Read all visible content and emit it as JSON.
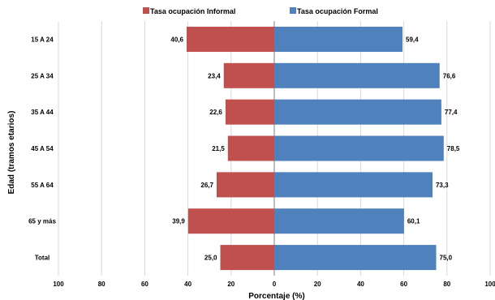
{
  "chart_data": {
    "type": "bar",
    "orientation": "horizontal-diverging",
    "categories": [
      "15 A  24",
      "25 A 34",
      "35 A 44",
      "45 A 54",
      "55 A 64",
      "65 y más",
      "Total"
    ],
    "series": [
      {
        "name": "Tasa ocupación Informal",
        "values": [
          40.6,
          23.4,
          22.6,
          21.5,
          26.7,
          39.9,
          25.0
        ],
        "labels": [
          "40,6",
          "23,4",
          "22,6",
          "21,5",
          "26,7",
          "39,9",
          "25,0"
        ],
        "color": "#c0504d",
        "direction": "left"
      },
      {
        "name": "Tasa ocupación Formal",
        "values": [
          59.4,
          76.6,
          77.4,
          78.5,
          73.3,
          60.1,
          75.0
        ],
        "labels": [
          "59,4",
          "76,6",
          "77,4",
          "78,5",
          "73,3",
          "60,1",
          "75,0"
        ],
        "color": "#4f81bd",
        "direction": "right"
      }
    ],
    "xlabel": "Porcentaje (%)",
    "ylabel": "Edad (tramos etarios)",
    "xlim": [
      -100,
      100
    ],
    "xticks": [
      -100,
      -80,
      -60,
      -40,
      -20,
      0,
      20,
      40,
      60,
      80,
      100
    ],
    "xtick_labels": [
      "100",
      "80",
      "60",
      "40",
      "20",
      "0",
      "20",
      "40",
      "60",
      "80",
      "100"
    ],
    "grid": "vertical",
    "legend": "top"
  }
}
